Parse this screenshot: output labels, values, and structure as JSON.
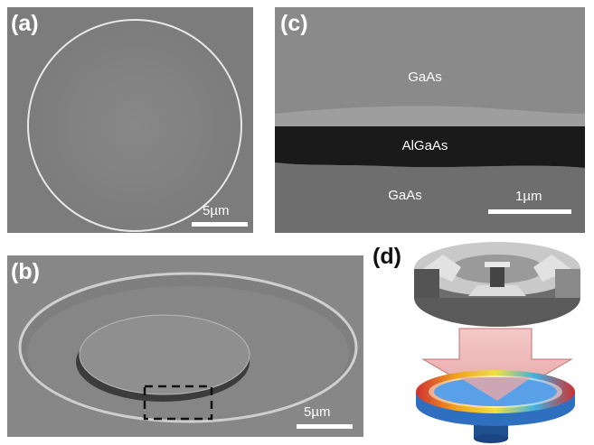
{
  "panels": {
    "a": {
      "label": "(a)",
      "scale_label": "5µm"
    },
    "b": {
      "label": "(b)",
      "scale_label": "5µm"
    },
    "c": {
      "label": "(c)",
      "scale_label": "1µm",
      "layers": {
        "top": "GaAs",
        "middle": "AlGaAs",
        "bottom": "GaAs"
      }
    },
    "d": {
      "label": "(d)"
    }
  }
}
